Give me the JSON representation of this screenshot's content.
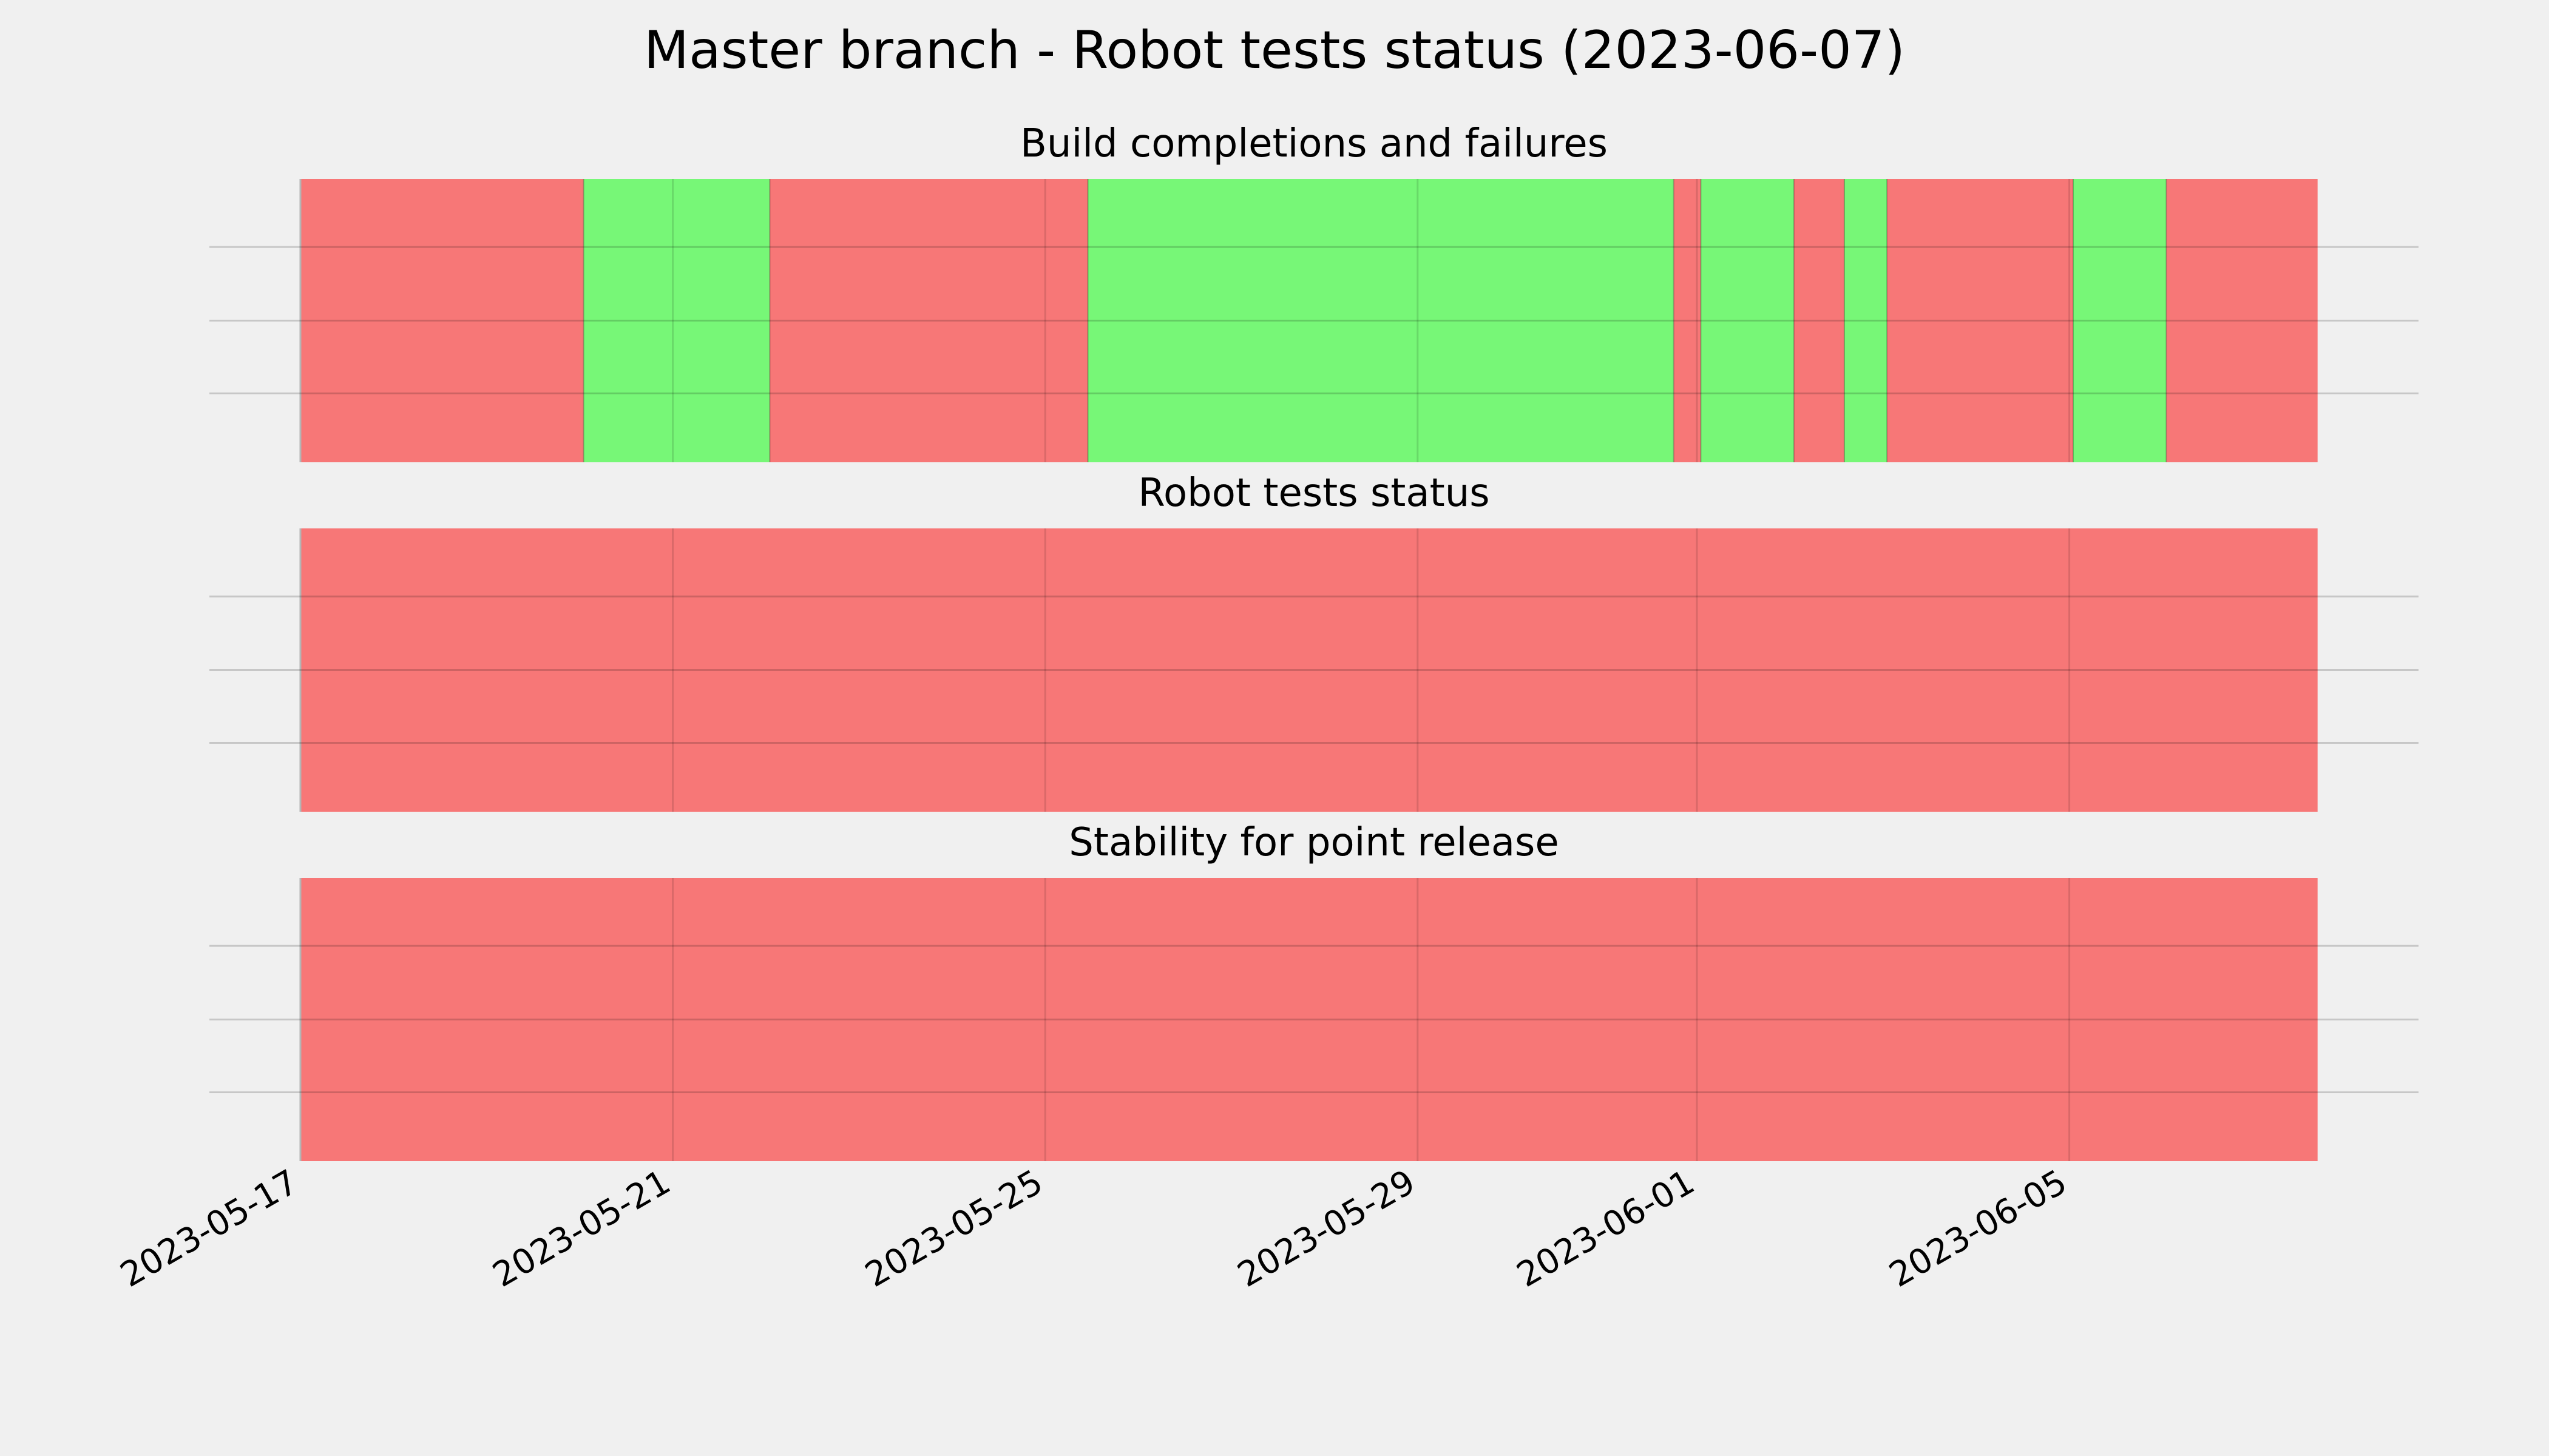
{
  "chart_data": {
    "type": "bar",
    "title": "Master branch - Robot tests status (2023-06-07)",
    "xaxis": {
      "scale": "time",
      "range": [
        "2023-05-17",
        "2023-06-07T04:00"
      ],
      "ticks": [
        "2023-05-17",
        "2023-05-21",
        "2023-05-25",
        "2023-05-29",
        "2023-06-01",
        "2023-06-05"
      ],
      "tick_label_rotation": 30
    },
    "grid": true,
    "colors": {
      "success": "#77f777",
      "failure": "#f77777",
      "background": "#f0f0f0"
    },
    "panels": [
      {
        "title": "Build completions and failures",
        "segments": [
          {
            "start": "2023-05-17",
            "end": "2023-05-20T01:00",
            "status": "failure"
          },
          {
            "start": "2023-05-20T01:00",
            "end": "2023-05-22T01:00",
            "status": "success"
          },
          {
            "start": "2023-05-22T01:00",
            "end": "2023-05-25T11:00",
            "status": "failure"
          },
          {
            "start": "2023-05-25T11:00",
            "end": "2023-05-31T18:00",
            "status": "success"
          },
          {
            "start": "2023-05-31T18:00",
            "end": "2023-06-01T01:00",
            "status": "failure"
          },
          {
            "start": "2023-06-01T01:00",
            "end": "2023-06-02T01:00",
            "status": "success"
          },
          {
            "start": "2023-06-02T01:00",
            "end": "2023-06-02T14:00",
            "status": "failure"
          },
          {
            "start": "2023-06-02T14:00",
            "end": "2023-06-03T01:00",
            "status": "success"
          },
          {
            "start": "2023-06-03T01:00",
            "end": "2023-06-05T01:00",
            "status": "failure"
          },
          {
            "start": "2023-06-05T01:00",
            "end": "2023-06-06T01:00",
            "status": "success"
          },
          {
            "start": "2023-06-06T01:00",
            "end": "2023-06-07T16:00",
            "status": "failure"
          }
        ]
      },
      {
        "title": "Robot tests status",
        "segments": [
          {
            "start": "2023-05-17",
            "end": "2023-06-07T16:00",
            "status": "failure"
          }
        ]
      },
      {
        "title": "Stability for point release",
        "segments": [
          {
            "start": "2023-05-17",
            "end": "2023-06-07T16:00",
            "status": "failure"
          }
        ]
      }
    ]
  }
}
